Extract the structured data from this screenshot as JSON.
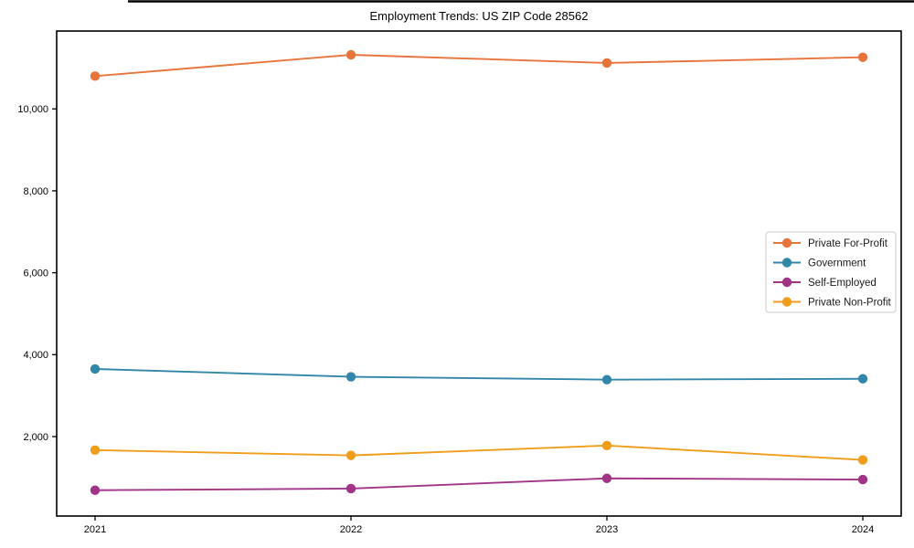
{
  "window": {
    "top_border_color": "#000000"
  },
  "chart_data": {
    "type": "line",
    "title": "Employment Trends: US ZIP Code 28562",
    "xlabel": "",
    "ylabel": "",
    "grid": false,
    "legend_position": "right",
    "x": [
      2021,
      2022,
      2023,
      2024
    ],
    "x_tick_labels": [
      "2021",
      "2022",
      "2023",
      "2024"
    ],
    "y_ticks": [
      {
        "value": 2000,
        "label": "2,000"
      },
      {
        "value": 4000,
        "label": "4,000"
      },
      {
        "value": 6000,
        "label": "6,000"
      },
      {
        "value": 8000,
        "label": "8,000"
      },
      {
        "value": 10000,
        "label": "10,000"
      }
    ],
    "xlim": [
      2020.85,
      2024.15
    ],
    "ylim": [
      60,
      11900
    ],
    "series": [
      {
        "name": "Private For-Profit",
        "color": "#e8743b",
        "values": [
          10800,
          11320,
          11120,
          11260
        ]
      },
      {
        "name": "Government",
        "color": "#3186a9",
        "values": [
          3650,
          3460,
          3390,
          3410
        ]
      },
      {
        "name": "Self-Employed",
        "color": "#a23487",
        "values": [
          690,
          730,
          980,
          950
        ]
      },
      {
        "name": "Private Non-Profit",
        "color": "#f09d1c",
        "values": [
          1670,
          1540,
          1780,
          1430
        ]
      }
    ]
  }
}
